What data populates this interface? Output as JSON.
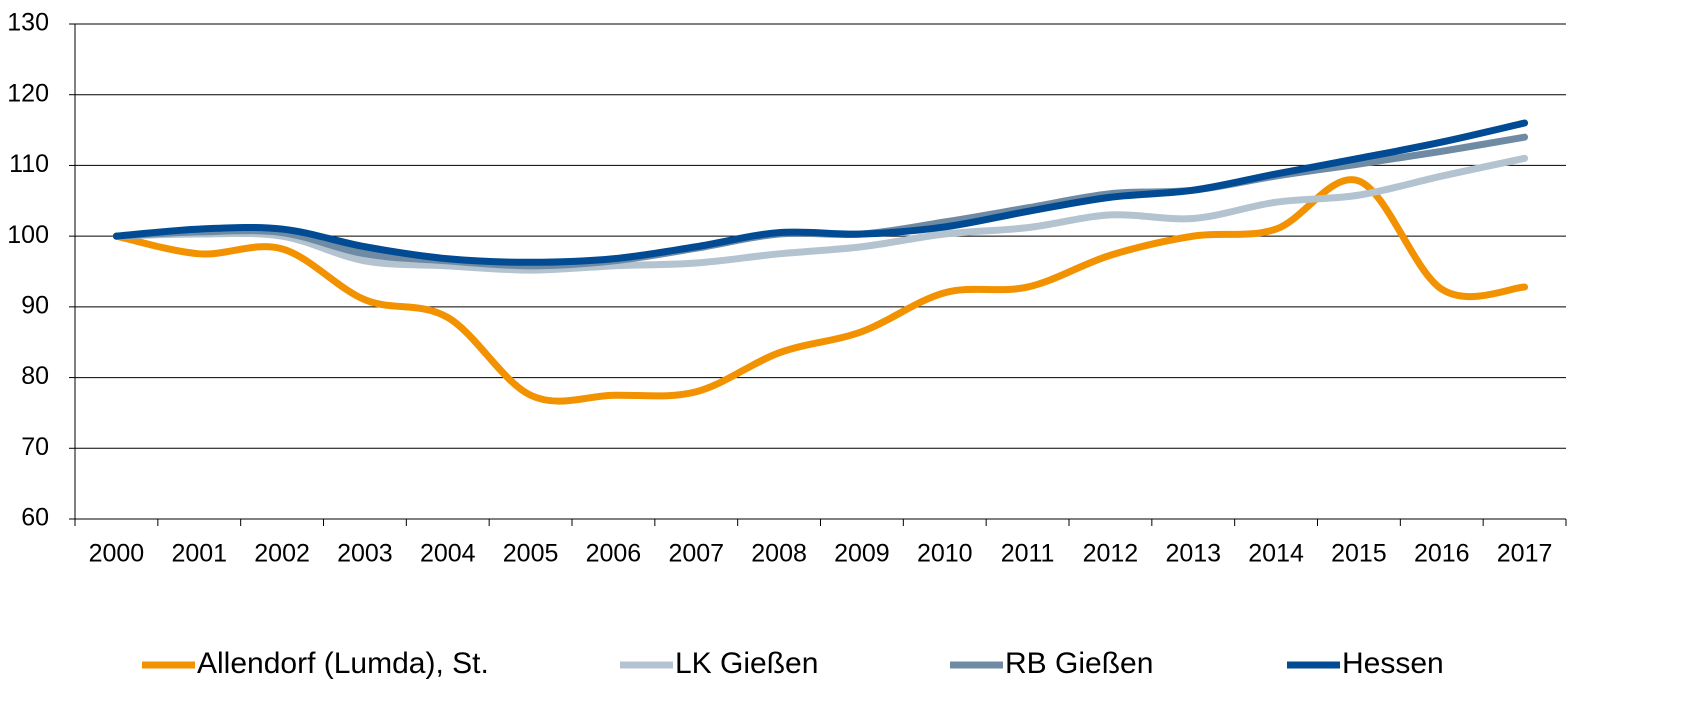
{
  "chart_data": {
    "type": "line",
    "categories": [
      "2000",
      "2001",
      "2002",
      "2003",
      "2004",
      "2005",
      "2006",
      "2007",
      "2008",
      "2009",
      "2010",
      "2011",
      "2012",
      "2013",
      "2014",
      "2015",
      "2016",
      "2017"
    ],
    "series": [
      {
        "name": "Allendorf (Lumda), St.",
        "color": "#f39200",
        "values": [
          100,
          97.5,
          98.2,
          91,
          88.5,
          77.5,
          77.5,
          78,
          83.5,
          86.5,
          92,
          92.8,
          97.3,
          100,
          101,
          107.8,
          92.5,
          92.8
        ]
      },
      {
        "name": "LK Gießen",
        "color": "#b4c3d0",
        "values": [
          100,
          100.3,
          100,
          96.5,
          95.8,
          95.2,
          95.8,
          96.2,
          97.5,
          98.5,
          100.3,
          101.2,
          103,
          102.5,
          104.8,
          105.8,
          108.5,
          111
        ]
      },
      {
        "name": "RB Gießen",
        "color": "#6f8ba3",
        "values": [
          100,
          100.6,
          100.5,
          97.5,
          96.5,
          95.8,
          96.5,
          98.3,
          100.3,
          100.3,
          102,
          104,
          106,
          106.5,
          108.5,
          110.2,
          112,
          114
        ]
      },
      {
        "name": "Hessen",
        "color": "#004b93",
        "values": [
          100,
          101,
          101,
          98.5,
          96.8,
          96.3,
          96.8,
          98.5,
          100.5,
          100.3,
          101.3,
          103.5,
          105.5,
          106.5,
          108.8,
          111,
          113.3,
          116
        ]
      }
    ],
    "ylim": [
      60,
      130
    ],
    "yticks": [
      60,
      70,
      80,
      90,
      100,
      110,
      120,
      130
    ],
    "grid": true,
    "legend": "bottom"
  }
}
